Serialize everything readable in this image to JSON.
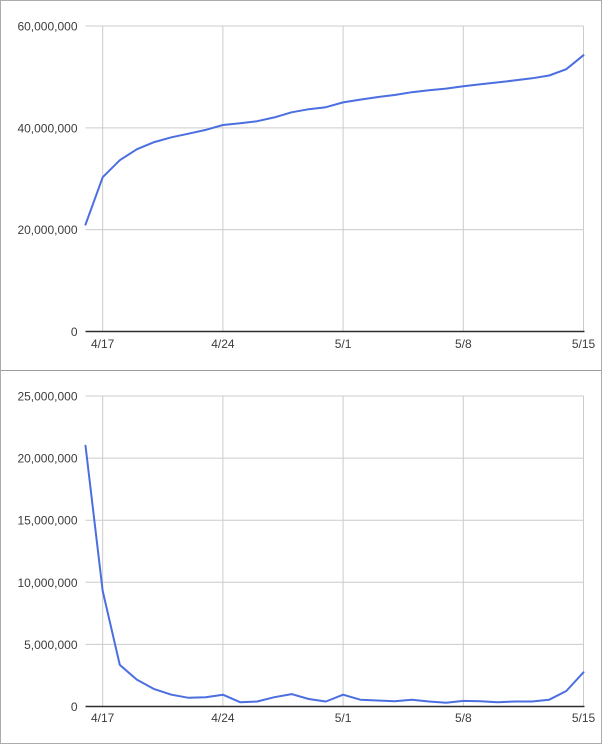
{
  "page": {
    "background": "#ffffff",
    "border_color": "#ababab",
    "divider_color": "#9c9c9c"
  },
  "style": {
    "line_color": "#4b6ee1",
    "grid_color": "#cccccc",
    "axis_color": "#2e2e2e",
    "label_color": "#3d3d3d",
    "label_font_size": 12
  },
  "chart_data": [
    {
      "type": "line",
      "name": "cumulative-total",
      "title": "",
      "xlabel": "",
      "ylabel": "",
      "legend": "none",
      "grid": true,
      "x": [
        "4/16",
        "4/17",
        "4/18",
        "4/19",
        "4/20",
        "4/21",
        "4/22",
        "4/23",
        "4/24",
        "4/25",
        "4/26",
        "4/27",
        "4/28",
        "4/29",
        "4/30",
        "5/1",
        "5/2",
        "5/3",
        "5/4",
        "5/5",
        "5/6",
        "5/7",
        "5/8",
        "5/9",
        "5/10",
        "5/11",
        "5/12",
        "5/13",
        "5/14",
        "5/15"
      ],
      "values": [
        21000000,
        30300000,
        33650000,
        35800000,
        37200000,
        38150000,
        38850000,
        39600000,
        40550000,
        40900000,
        41300000,
        42050000,
        43050000,
        43650000,
        44050000,
        45000000,
        45550000,
        46030000,
        46450000,
        47000000,
        47400000,
        47700000,
        48150000,
        48570000,
        48920000,
        49320000,
        49720000,
        50270000,
        51520000,
        54270000
      ],
      "ylim": [
        0,
        60000000
      ],
      "y_ticks": [
        0,
        20000000,
        40000000,
        60000000
      ],
      "y_tick_labels": [
        "0",
        "20,000,000",
        "40,000,000",
        "60,000,000"
      ],
      "x_tick_labels": [
        "4/17",
        "4/24",
        "5/1",
        "5/8",
        "5/15"
      ],
      "x_tick_indices": [
        1,
        8,
        15,
        22,
        29
      ]
    },
    {
      "type": "line",
      "name": "daily-change",
      "title": "",
      "xlabel": "",
      "ylabel": "",
      "legend": "none",
      "grid": true,
      "x": [
        "4/16",
        "4/17",
        "4/18",
        "4/19",
        "4/20",
        "4/21",
        "4/22",
        "4/23",
        "4/24",
        "4/25",
        "4/26",
        "4/27",
        "4/28",
        "4/29",
        "4/30",
        "5/1",
        "5/2",
        "5/3",
        "5/4",
        "5/5",
        "5/6",
        "5/7",
        "5/8",
        "5/9",
        "5/10",
        "5/11",
        "5/12",
        "5/13",
        "5/14",
        "5/15"
      ],
      "values": [
        21000000,
        9300000,
        3350000,
        2150000,
        1400000,
        950000,
        700000,
        750000,
        950000,
        350000,
        400000,
        750000,
        1000000,
        600000,
        400000,
        950000,
        550000,
        480000,
        420000,
        550000,
        400000,
        300000,
        450000,
        420000,
        350000,
        400000,
        400000,
        550000,
        1250000,
        2750000
      ],
      "ylim": [
        0,
        25000000
      ],
      "y_ticks": [
        0,
        5000000,
        10000000,
        15000000,
        20000000,
        25000000
      ],
      "y_tick_labels": [
        "0",
        "5,000,000",
        "10,000,000",
        "15,000,000",
        "20,000,000",
        "25,000,000"
      ],
      "x_tick_labels": [
        "4/17",
        "4/24",
        "5/1",
        "5/8",
        "5/15"
      ],
      "x_tick_indices": [
        1,
        8,
        15,
        22,
        29
      ]
    }
  ]
}
